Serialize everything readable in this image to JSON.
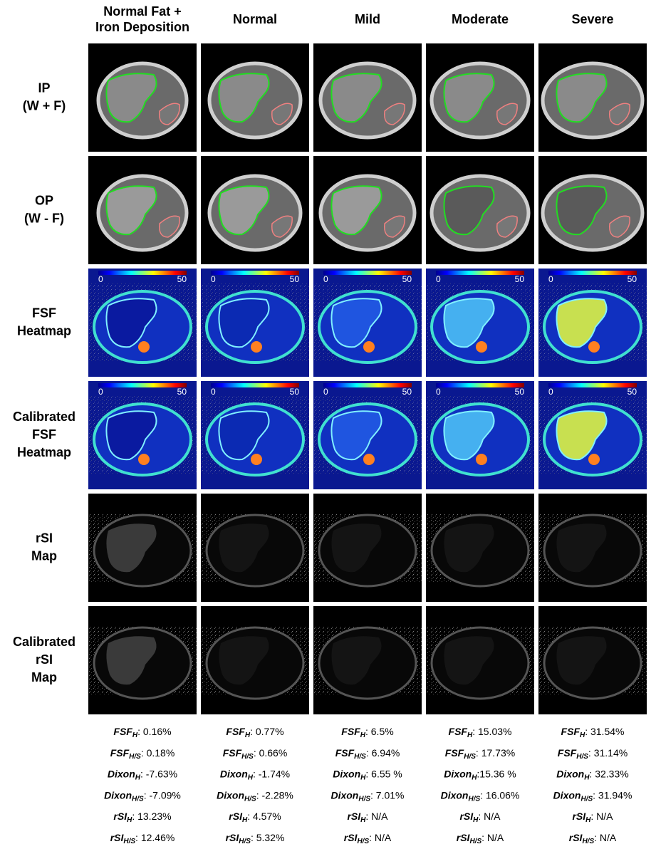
{
  "columns": [
    [
      "Normal Fat +",
      "Iron Deposition"
    ],
    [
      "Normal"
    ],
    [
      "Mild"
    ],
    [
      "Moderate"
    ],
    [
      "Severe"
    ]
  ],
  "rows": [
    [
      "IP",
      "(W + F)"
    ],
    [
      "OP",
      "(W - F)"
    ],
    [
      "FSF",
      "Heatmap"
    ],
    [
      "Calibrated",
      "FSF",
      "Heatmap"
    ],
    [
      "rSI",
      "Map"
    ],
    [
      "Calibrated",
      "rSI",
      "Map"
    ]
  ],
  "colorbar": {
    "min": 0,
    "max": 50
  },
  "metrics": [
    [
      {
        "name": "FSF",
        "sub": "H",
        "text": ": 0.16%"
      },
      {
        "name": "FSF",
        "sub": "H/S",
        "text": ": 0.18%"
      },
      {
        "name": "Dixon",
        "sub": "H",
        "text": ": -7.63%"
      },
      {
        "name": "Dixon",
        "sub": "H/S",
        "text": ": -7.09%"
      },
      {
        "name": "rSI",
        "sub": "H",
        "text": ": 13.23%"
      },
      {
        "name": "rSI",
        "sub": "H/S",
        "text": ": 12.46%"
      }
    ],
    [
      {
        "name": "FSF",
        "sub": "H",
        "text": ": 0.77%"
      },
      {
        "name": "FSF",
        "sub": "H/S",
        "text": ": 0.66%"
      },
      {
        "name": "Dixon",
        "sub": "H",
        "text": ": -1.74%"
      },
      {
        "name": "Dixon",
        "sub": "H/S",
        "text": ": -2.28%"
      },
      {
        "name": "rSI",
        "sub": "H",
        "text": ": 4.57%"
      },
      {
        "name": "rSI",
        "sub": "H/S",
        "text": ": 5.32%"
      }
    ],
    [
      {
        "name": "FSF",
        "sub": "H",
        "text": ": 6.5%"
      },
      {
        "name": "FSF",
        "sub": "H/S",
        "text": ": 6.94%"
      },
      {
        "name": "Dixon",
        "sub": "H",
        "text": ": 6.55 %"
      },
      {
        "name": "Dixon",
        "sub": "H/S",
        "text": ": 7.01%"
      },
      {
        "name": "rSI",
        "sub": "H",
        "text": ": N/A"
      },
      {
        "name": "rSI",
        "sub": "H/S",
        "text": ": N/A"
      }
    ],
    [
      {
        "name": "FSF",
        "sub": "H",
        "text": ": 15.03%"
      },
      {
        "name": "FSF",
        "sub": "H/S",
        "text": ": 17.73%"
      },
      {
        "name": "Dixon",
        "sub": "H",
        "text": ":15.36 %"
      },
      {
        "name": "Dixon",
        "sub": "H/S",
        "text": ": 16.06%"
      },
      {
        "name": "rSI",
        "sub": "H",
        "text": ": N/A"
      },
      {
        "name": "rSI",
        "sub": "H/S",
        "text": ": N/A"
      }
    ],
    [
      {
        "name": "FSF",
        "sub": "H",
        "text": ": 31.54%"
      },
      {
        "name": "FSF",
        "sub": "H/S",
        "text": ": 31.14%"
      },
      {
        "name": "Dixon",
        "sub": "H",
        "text": ": 32.33%"
      },
      {
        "name": "Dixon",
        "sub": "H/S",
        "text": ": 31.94%"
      },
      {
        "name": "rSI",
        "sub": "H",
        "text": ": N/A"
      },
      {
        "name": "rSI",
        "sub": "H/S",
        "text": ": N/A"
      }
    ]
  ]
}
